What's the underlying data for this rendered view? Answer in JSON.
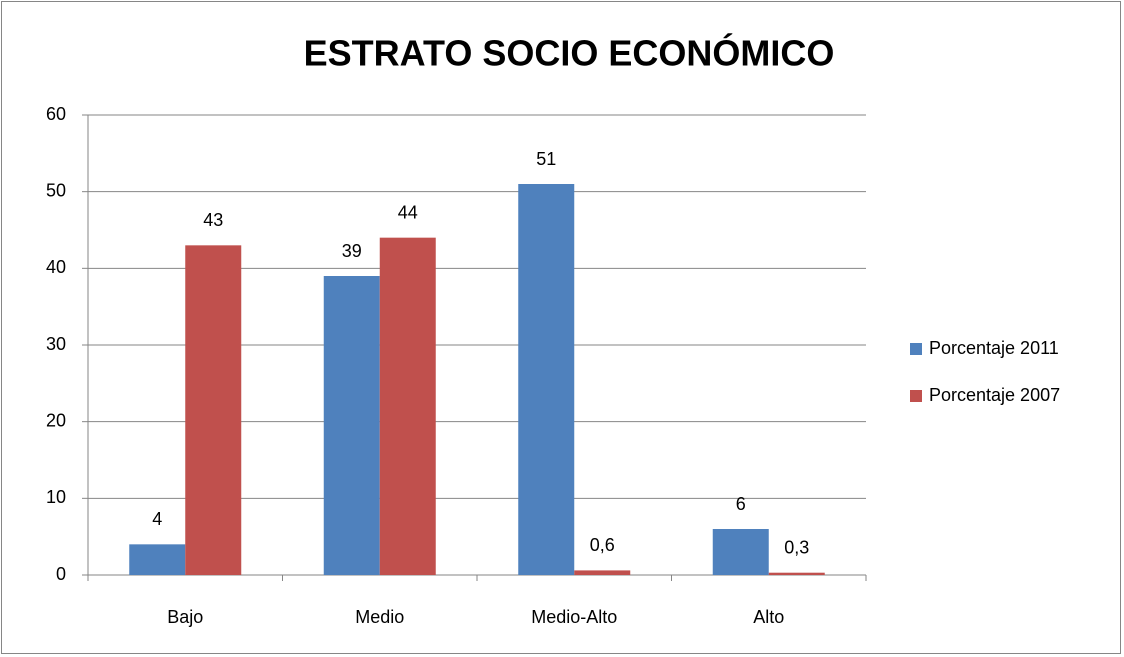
{
  "chart_data": {
    "type": "bar",
    "title": "ESTRATO SOCIO ECONÓMICO",
    "categories": [
      "Bajo",
      "Medio",
      "Medio-Alto",
      "Alto"
    ],
    "series": [
      {
        "name": "Porcentaje 2011",
        "color": "#4f81bd",
        "values": [
          4,
          39,
          51,
          6
        ]
      },
      {
        "name": "Porcentaje 2007",
        "color": "#c0504d",
        "values": [
          43,
          44,
          0.6,
          0.3
        ],
        "value_labels": [
          "43",
          "44",
          "0,6",
          "0,3"
        ]
      }
    ],
    "ylim": [
      0,
      60
    ],
    "yticks": [
      0,
      10,
      20,
      30,
      40,
      50,
      60
    ],
    "grid": true,
    "legend": "right"
  }
}
